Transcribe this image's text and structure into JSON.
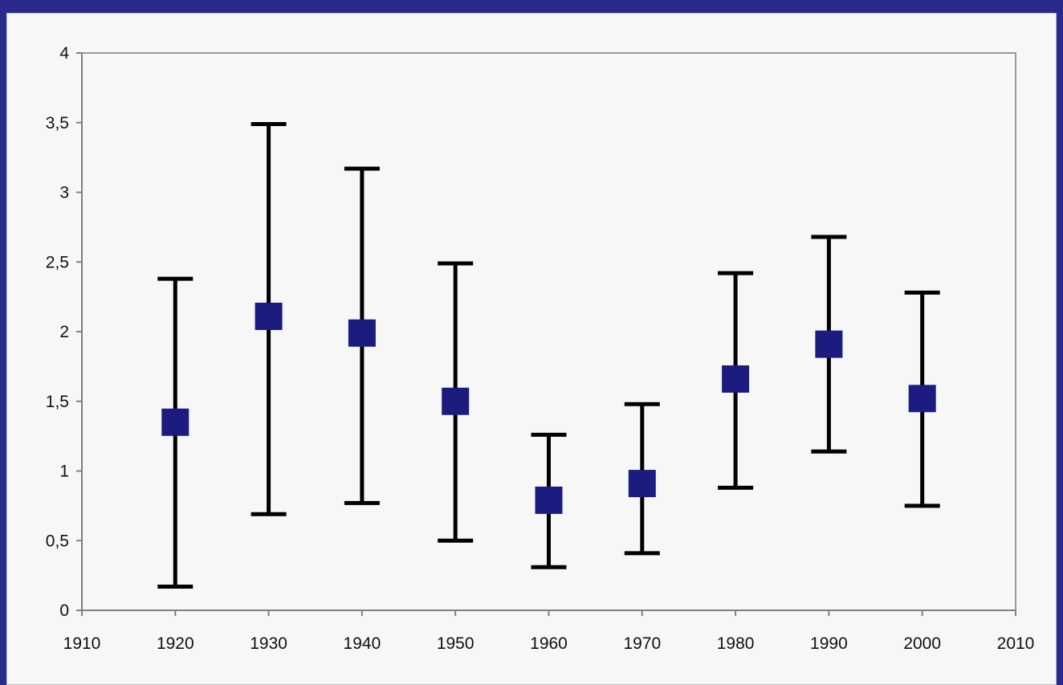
{
  "chart_data": {
    "type": "scatter",
    "title": "",
    "xlabel": "",
    "ylabel": "",
    "xlim": [
      1910,
      2010
    ],
    "ylim": [
      0,
      4
    ],
    "x_ticks": [
      1910,
      1920,
      1930,
      1940,
      1950,
      1960,
      1970,
      1980,
      1990,
      2000,
      2010
    ],
    "y_ticks": [
      0,
      0.5,
      1,
      1.5,
      2,
      2.5,
      3,
      3.5,
      4
    ],
    "y_tick_labels": [
      "0",
      "0,5",
      "1",
      "1,5",
      "2",
      "2,5",
      "3",
      "3,5",
      "4"
    ],
    "x_tick_labels": [
      "1910",
      "1920",
      "1930",
      "1940",
      "1950",
      "1960",
      "1970",
      "1980",
      "1990",
      "2000",
      "2010"
    ],
    "grid": false,
    "legend": "none",
    "marker_color": "#1c1c80",
    "errorbar_color": "#000000",
    "series": [
      {
        "points": [
          {
            "x": 1920,
            "y": 1.35,
            "low": 0.17,
            "high": 2.38
          },
          {
            "x": 1930,
            "y": 2.11,
            "low": 0.69,
            "high": 3.49
          },
          {
            "x": 1940,
            "y": 1.99,
            "low": 0.77,
            "high": 3.17
          },
          {
            "x": 1950,
            "y": 1.5,
            "low": 0.5,
            "high": 2.49
          },
          {
            "x": 1960,
            "y": 0.79,
            "low": 0.31,
            "high": 1.26
          },
          {
            "x": 1970,
            "y": 0.91,
            "low": 0.41,
            "high": 1.48
          },
          {
            "x": 1980,
            "y": 1.66,
            "low": 0.88,
            "high": 2.42
          },
          {
            "x": 1990,
            "y": 1.91,
            "low": 1.14,
            "high": 2.68
          },
          {
            "x": 2000,
            "y": 1.52,
            "low": 0.75,
            "high": 2.28
          }
        ]
      }
    ]
  }
}
